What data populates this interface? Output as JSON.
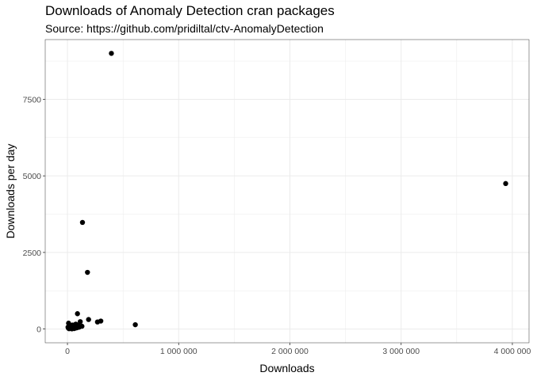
{
  "chart_data": {
    "type": "scatter",
    "title": "Downloads of Anomaly Detection cran packages",
    "subtitle": "Source: https://github.com/pridiltal/ctv-AnomalyDetection",
    "xlabel": "Downloads",
    "ylabel": "Downloads per day",
    "xlim": [
      -200000,
      4150000
    ],
    "ylim": [
      -450,
      9450
    ],
    "x_ticks": [
      0,
      1000000,
      2000000,
      3000000,
      4000000
    ],
    "x_tick_labels": [
      "0",
      "1 000 000",
      "2 000 000",
      "3 000 000",
      "4 000 000"
    ],
    "y_ticks": [
      0,
      2500,
      5000,
      7500
    ],
    "y_tick_labels": [
      "0",
      "2500",
      "5000",
      "7500"
    ],
    "grid": true,
    "point_color": "#000000",
    "points": [
      {
        "x": 395000,
        "y": 9000
      },
      {
        "x": 3940000,
        "y": 4750
      },
      {
        "x": 135000,
        "y": 3480
      },
      {
        "x": 180000,
        "y": 1850
      },
      {
        "x": 90000,
        "y": 500
      },
      {
        "x": 190000,
        "y": 310
      },
      {
        "x": 300000,
        "y": 260
      },
      {
        "x": 270000,
        "y": 230
      },
      {
        "x": 115000,
        "y": 240
      },
      {
        "x": 610000,
        "y": 140
      },
      {
        "x": 10000,
        "y": 190
      },
      {
        "x": 20000,
        "y": 100
      },
      {
        "x": 35000,
        "y": 80
      },
      {
        "x": 55000,
        "y": 50
      },
      {
        "x": 75000,
        "y": 160
      },
      {
        "x": 95000,
        "y": 120
      },
      {
        "x": 130000,
        "y": 90
      },
      {
        "x": 8000,
        "y": 30
      },
      {
        "x": 15000,
        "y": 10
      },
      {
        "x": 25000,
        "y": 20
      },
      {
        "x": 40000,
        "y": 5
      },
      {
        "x": 60000,
        "y": 15
      },
      {
        "x": 85000,
        "y": 40
      },
      {
        "x": 105000,
        "y": 60
      },
      {
        "x": 5000,
        "y": 60
      },
      {
        "x": 45000,
        "y": 130
      },
      {
        "x": 70000,
        "y": 30
      }
    ]
  }
}
